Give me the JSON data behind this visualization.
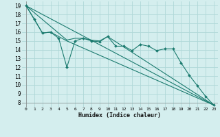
{
  "background_color": "#d4eeee",
  "grid_color": "#b0d8d8",
  "line_color": "#1a7a6e",
  "xlabel": "Humidex (Indice chaleur)",
  "xlim": [
    -0.5,
    23.5
  ],
  "ylim": [
    7.5,
    19.5
  ],
  "yticks": [
    8,
    9,
    10,
    11,
    12,
    13,
    14,
    15,
    16,
    17,
    18,
    19
  ],
  "xticks": [
    0,
    1,
    2,
    3,
    4,
    5,
    6,
    7,
    8,
    9,
    10,
    11,
    12,
    13,
    14,
    15,
    16,
    17,
    18,
    19,
    20,
    21,
    22,
    23
  ],
  "xtick_labels": [
    "0",
    "1",
    "2",
    "3",
    "4",
    "5",
    "6",
    "7",
    "8",
    "9",
    "10",
    "11",
    "12",
    "13",
    "14",
    "15",
    "16",
    "17",
    "18",
    "19",
    "20",
    "21",
    "22",
    "23"
  ],
  "line1_x": [
    0,
    1,
    2,
    3,
    4,
    5,
    6,
    7,
    8,
    9,
    10,
    11,
    12,
    13,
    14,
    15,
    16,
    17,
    18,
    19,
    20,
    21,
    22,
    23
  ],
  "line1_y": [
    19.0,
    17.5,
    15.9,
    16.0,
    15.3,
    12.0,
    15.0,
    15.3,
    15.0,
    14.9,
    15.5,
    14.4,
    14.4,
    13.9,
    14.6,
    14.4,
    13.9,
    14.1,
    14.1,
    12.5,
    11.1,
    9.9,
    8.7,
    7.7
  ],
  "line2_x": [
    0,
    2,
    3,
    4,
    5,
    23
  ],
  "line2_y": [
    19.0,
    15.9,
    16.0,
    15.5,
    15.0,
    7.7
  ],
  "line3_x": [
    0,
    23
  ],
  "line3_y": [
    19.0,
    7.7
  ],
  "line4_x": [
    0,
    5,
    6,
    7,
    8,
    9,
    10,
    23
  ],
  "line4_y": [
    19.0,
    15.1,
    15.3,
    15.3,
    15.1,
    15.0,
    15.5,
    7.7
  ]
}
